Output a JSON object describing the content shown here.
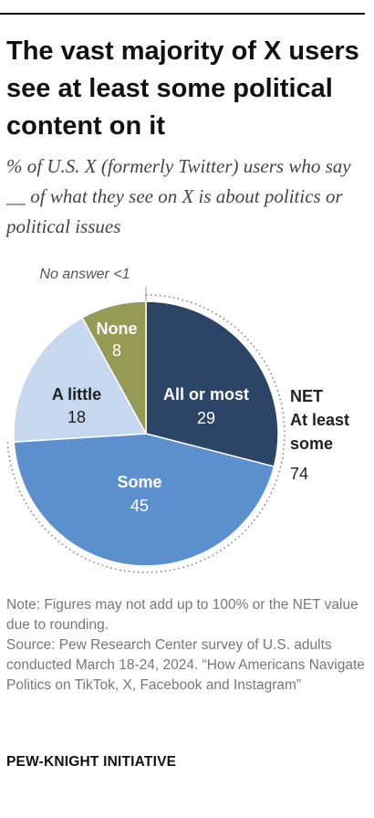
{
  "header": {
    "title": "The vast majority of X users see at least some political content on it",
    "subtitle": "% of U.S. X (formerly Twitter) users who say __ of what they see on X is about politics or political issues"
  },
  "chart_data": {
    "type": "pie",
    "slices": [
      {
        "label": "All or most",
        "value": 29,
        "color": "#2c4466",
        "label_color": "#ffffff"
      },
      {
        "label": "Some",
        "value": 45,
        "color": "#5b8fcd",
        "label_color": "#ffffff"
      },
      {
        "label": "A little",
        "value": 18,
        "color": "#c5d8ef",
        "label_color": "#222222"
      },
      {
        "label": "None",
        "value": 8,
        "color": "#959a54",
        "label_color": "#ffffff"
      }
    ],
    "no_answer": {
      "label": "No answer <1"
    },
    "net": {
      "label": "NET At least some",
      "value": 74
    }
  },
  "footer": {
    "note": "Note: Figures may not add up to 100% or the NET value due to rounding.",
    "source": "Source: Pew Research Center survey of U.S. adults conducted March 18-24, 2024. “How Americans Navigate Politics on TikTok, X, Facebook and Instagram”",
    "brand": "PEW-KNIGHT INITIATIVE"
  }
}
